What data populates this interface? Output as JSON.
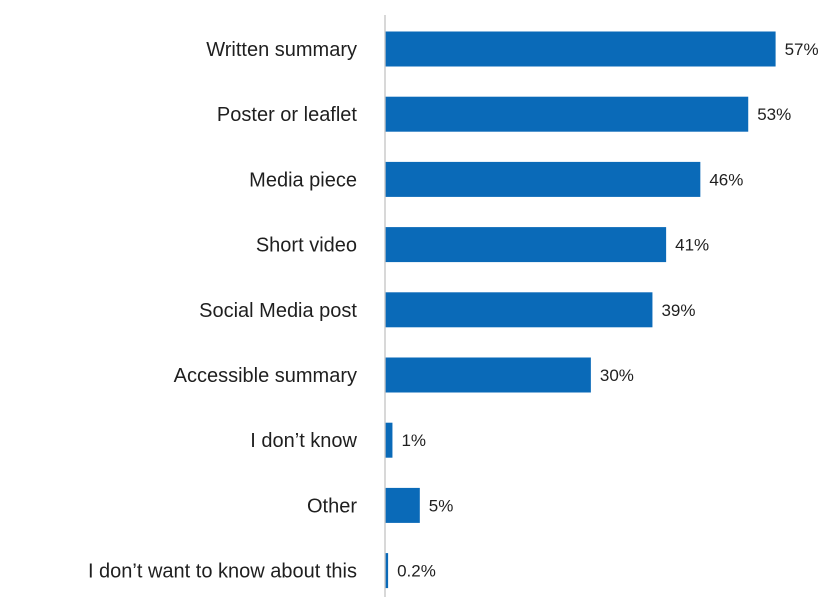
{
  "chart_data": {
    "type": "bar",
    "orientation": "horizontal",
    "categories": [
      "Written summary",
      "Poster or leaflet",
      "Media piece",
      "Short video",
      "Social Media post",
      "Accessible summary",
      "I don’t know",
      "Other",
      "I don’t want to know about this"
    ],
    "values": [
      57,
      53,
      46,
      41,
      39,
      30,
      1,
      5,
      0.2
    ],
    "value_labels": [
      "57%",
      "53%",
      "46%",
      "41%",
      "39%",
      "30%",
      "1%",
      "5%",
      "0.2%"
    ],
    "title": "",
    "xlabel": "",
    "ylabel": "",
    "xlim": [
      0,
      60
    ],
    "grid": false,
    "legend": "none",
    "bar_color": "#0a6ab8"
  }
}
